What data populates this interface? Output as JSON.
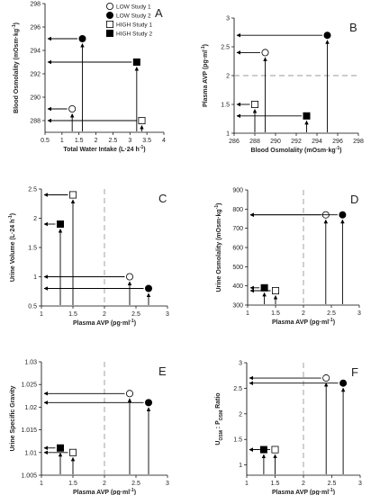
{
  "legend": [
    {
      "label": "LOW  Study 1",
      "marker": "open-circle"
    },
    {
      "label": "LOW  Study 2",
      "marker": "filled-circle"
    },
    {
      "label": "HIGH Study 1",
      "marker": "open-square"
    },
    {
      "label": "HIGH Study 2",
      "marker": "filled-square"
    }
  ],
  "chart_data": [
    {
      "panel": "A",
      "type": "scatter",
      "xlabel": "Total Water Intake (L·24 h⁻¹)",
      "ylabel": "Blood Osmolality (mOsm·kg⁻¹)",
      "xlim": [
        0.5,
        4
      ],
      "ylim": [
        287,
        298
      ],
      "xticks": [
        "0.5",
        "1",
        "1.5",
        "2",
        "2.5",
        "3",
        "3.5",
        "4"
      ],
      "yticks": [
        "288",
        "290",
        "292",
        "294",
        "296",
        "298"
      ],
      "refline": null,
      "points": [
        {
          "group": "LOW  Study 1",
          "x": 1.3,
          "y": 289
        },
        {
          "group": "LOW  Study 2",
          "x": 1.6,
          "y": 295
        },
        {
          "group": "HIGH Study 1",
          "x": 3.35,
          "y": 288
        },
        {
          "group": "HIGH Study 2",
          "x": 3.2,
          "y": 293
        }
      ]
    },
    {
      "panel": "B",
      "type": "scatter",
      "xlabel": "Blood Osmolality (mOsm·kg⁻¹)",
      "ylabel": "Plasma AVP (pg·ml⁻¹)",
      "xlim": [
        286,
        298
      ],
      "ylim": [
        1,
        3
      ],
      "xticks": [
        "286",
        "288",
        "290",
        "292",
        "294",
        "296",
        "298"
      ],
      "yticks": [
        "1",
        "1.5",
        "2",
        "2.5",
        "3"
      ],
      "refline": {
        "axis": "y",
        "value": 2
      },
      "points": [
        {
          "group": "LOW  Study 1",
          "x": 289,
          "y": 2.4
        },
        {
          "group": "LOW  Study 2",
          "x": 295,
          "y": 2.7
        },
        {
          "group": "HIGH Study 1",
          "x": 288,
          "y": 1.5
        },
        {
          "group": "HIGH Study 2",
          "x": 293,
          "y": 1.3
        }
      ]
    },
    {
      "panel": "C",
      "type": "scatter",
      "xlabel": "Plasma AVP (pg·ml⁻¹)",
      "ylabel": "Urine Volume (L·24 h⁻¹)",
      "xlim": [
        1,
        3
      ],
      "ylim": [
        0.5,
        2.5
      ],
      "xticks": [
        "1",
        "1.5",
        "2",
        "2.5",
        "3"
      ],
      "yticks": [
        "0.5",
        "1",
        "1.5",
        "2",
        "2.5"
      ],
      "refline": {
        "axis": "x",
        "value": 2
      },
      "points": [
        {
          "group": "LOW  Study 1",
          "x": 2.4,
          "y": 1.0
        },
        {
          "group": "LOW  Study 2",
          "x": 2.7,
          "y": 0.8
        },
        {
          "group": "HIGH Study 1",
          "x": 1.5,
          "y": 2.4
        },
        {
          "group": "HIGH Study 2",
          "x": 1.3,
          "y": 1.9
        }
      ]
    },
    {
      "panel": "D",
      "type": "scatter",
      "xlabel": "Plasma AVP (pg·ml⁻¹)",
      "ylabel": "Urine Osmolality (mOsm·kg⁻¹)",
      "xlim": [
        1,
        3
      ],
      "ylim": [
        300,
        900
      ],
      "xticks": [
        "1",
        "1.5",
        "2",
        "2.5",
        "3"
      ],
      "yticks": [
        "300",
        "400",
        "500",
        "600",
        "700",
        "800",
        "900"
      ],
      "refline": {
        "axis": "x",
        "value": 2
      },
      "points": [
        {
          "group": "LOW  Study 1",
          "x": 2.4,
          "y": 770
        },
        {
          "group": "LOW  Study 2",
          "x": 2.7,
          "y": 770
        },
        {
          "group": "HIGH Study 1",
          "x": 1.5,
          "y": 375
        },
        {
          "group": "HIGH Study 2",
          "x": 1.3,
          "y": 390
        }
      ]
    },
    {
      "panel": "E",
      "type": "scatter",
      "xlabel": "Plasma AVP (pg·ml⁻¹)",
      "ylabel": "Urine Specific Gravity",
      "xlim": [
        1,
        3
      ],
      "ylim": [
        1.005,
        1.03
      ],
      "xticks": [
        "1",
        "1.5",
        "2",
        "2.5",
        "3"
      ],
      "yticks": [
        "1.005",
        "1.01",
        "1.015",
        "1.02",
        "1.025",
        "1.03"
      ],
      "refline": {
        "axis": "x",
        "value": 2
      },
      "points": [
        {
          "group": "LOW  Study 1",
          "x": 2.4,
          "y": 1.023
        },
        {
          "group": "LOW  Study 2",
          "x": 2.7,
          "y": 1.021
        },
        {
          "group": "HIGH Study 1",
          "x": 1.5,
          "y": 1.01
        },
        {
          "group": "HIGH Study 2",
          "x": 1.3,
          "y": 1.011
        }
      ]
    },
    {
      "panel": "F",
      "type": "scatter",
      "xlabel": "Plasma AVP (pg·ml⁻¹)",
      "ylabel": "U_OSM : P_OSM Ratio",
      "xlim": [
        1,
        3
      ],
      "ylim": [
        0.8,
        3
      ],
      "xticks": [
        "1",
        "1.5",
        "2",
        "2.5",
        "3"
      ],
      "yticks": [
        "1",
        "1.5",
        "2",
        "2.5",
        "3"
      ],
      "refline": {
        "axis": "x",
        "value": 2
      },
      "points": [
        {
          "group": "LOW  Study 1",
          "x": 2.4,
          "y": 2.7
        },
        {
          "group": "LOW  Study 2",
          "x": 2.7,
          "y": 2.6
        },
        {
          "group": "HIGH Study 1",
          "x": 1.5,
          "y": 1.3
        },
        {
          "group": "HIGH Study 2",
          "x": 1.3,
          "y": 1.3
        }
      ]
    }
  ]
}
